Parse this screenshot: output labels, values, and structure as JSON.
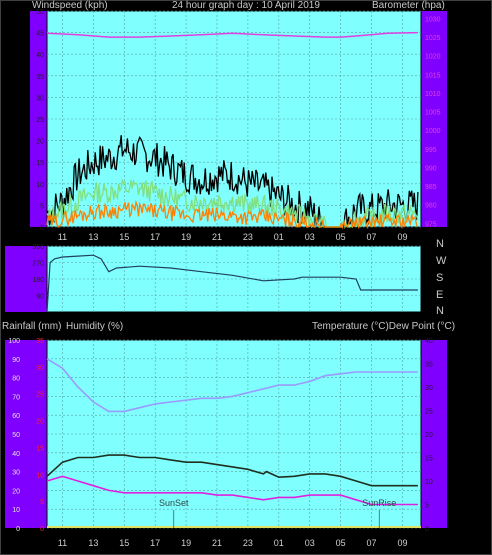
{
  "header": {
    "left": "Windspeed (kph)",
    "center": "24 hour graph day : 10 April 2019",
    "right": "Barometer (hpa)"
  },
  "direction_labels": [
    "N",
    "W",
    "S",
    "E",
    "N"
  ],
  "bottom_header": {
    "left1": "Rainfall (mm)",
    "left2": "Humidity (%)",
    "right": "Temperature (°C)Dew Point (°C)"
  },
  "colors": {
    "background": "#000000",
    "plot_area": "#80ffff",
    "side_panel": "#8000ff",
    "wind_gust": "#000000",
    "wind_avg": "#80e080",
    "wind_low": "#ff8000",
    "barometer": "#e040e0",
    "direction": "#204060",
    "humidity": "#9a9aff",
    "temperature": "#203020",
    "dew_point": "#e020e0",
    "rain_axis": "#ff2020"
  },
  "x_ticks": [
    "11",
    "13",
    "15",
    "17",
    "19",
    "21",
    "23",
    "01",
    "03",
    "05",
    "07",
    "09"
  ],
  "chart_data": [
    {
      "type": "line",
      "name": "wind-barometer",
      "series": [
        {
          "name": "Windspeed gust",
          "x": [
            10,
            11,
            12,
            13,
            14,
            15,
            16,
            17,
            18,
            19,
            20,
            21,
            22,
            23,
            24,
            25,
            26,
            27,
            28,
            29,
            30,
            31,
            32,
            33,
            34
          ],
          "values": [
            3,
            6,
            12,
            15,
            16,
            18,
            17,
            16,
            14,
            12,
            11,
            12,
            12,
            10,
            9,
            7,
            5,
            4,
            0,
            0,
            4,
            4,
            5,
            5,
            5
          ]
        },
        {
          "name": "Windspeed average",
          "x": [
            10,
            11,
            12,
            13,
            14,
            15,
            16,
            17,
            18,
            19,
            20,
            21,
            22,
            23,
            24,
            25,
            26,
            27,
            28,
            29,
            30,
            31,
            32,
            33,
            34
          ],
          "values": [
            2,
            4,
            6,
            8,
            8,
            9,
            9,
            8,
            7,
            6,
            6,
            6,
            6,
            5,
            5,
            4,
            3,
            2,
            0,
            0,
            2,
            2,
            3,
            3,
            3
          ]
        },
        {
          "name": "Barometer",
          "x": [
            10,
            12,
            14,
            16,
            18,
            20,
            22,
            24,
            26,
            28,
            29,
            30,
            32,
            34
          ],
          "values": [
            1026,
            1025.6,
            1025,
            1025,
            1025.3,
            1025.6,
            1026,
            1025.6,
            1025.3,
            1025,
            1025,
            1025.3,
            1026,
            1026.2
          ]
        }
      ],
      "left_axis": {
        "ticks": [
          "0",
          "5",
          "10",
          "15",
          "20",
          "25",
          "30",
          "35",
          "40",
          "45",
          "50"
        ],
        "ylim": [
          0,
          50
        ]
      },
      "right_axis": {
        "ticks": [
          "975",
          "980",
          "985",
          "990",
          "995",
          "1000",
          "1005",
          "1010",
          "1015",
          "1020",
          "1025",
          "1030"
        ],
        "ylim": [
          974,
          1032
        ]
      }
    },
    {
      "type": "line",
      "name": "wind-direction",
      "series": [
        {
          "name": "Wind direction",
          "x": [
            10,
            10.2,
            10.5,
            11,
            12,
            13,
            13.5,
            14,
            14.5,
            16,
            18,
            20,
            22,
            24,
            26,
            26.5,
            28,
            29,
            30,
            30.3,
            31,
            32,
            34
          ],
          "values": [
            0,
            270,
            290,
            300,
            305,
            310,
            290,
            220,
            240,
            250,
            240,
            220,
            200,
            170,
            180,
            190,
            190,
            190,
            180,
            120,
            120,
            120,
            120
          ]
        }
      ],
      "left_axis": {
        "ticks": [
          "90",
          "180",
          "270",
          "360"
        ],
        "ylim": [
          0,
          360
        ]
      }
    },
    {
      "type": "line",
      "name": "temperature-humidity",
      "series": [
        {
          "name": "Humidity",
          "x": [
            10,
            11,
            12,
            13,
            14,
            15,
            16,
            17,
            18,
            19,
            20,
            21,
            22,
            23,
            24,
            25,
            26,
            27,
            28,
            29,
            30,
            31,
            32,
            33,
            34
          ],
          "values": [
            90,
            85,
            75,
            67,
            62,
            62,
            64,
            66,
            67,
            68,
            69,
            69,
            70,
            72,
            74,
            76,
            76,
            78,
            81,
            82,
            83,
            83,
            83,
            83,
            83
          ]
        },
        {
          "name": "Temperature",
          "x": [
            10,
            11,
            12,
            13,
            14,
            15,
            16,
            17,
            18,
            19,
            20,
            21,
            22,
            23,
            24,
            24.2,
            25,
            26,
            27,
            28,
            29,
            30,
            31,
            32,
            33,
            34
          ],
          "values": [
            11,
            14,
            15,
            15,
            15.5,
            15.5,
            15,
            15,
            14.5,
            14,
            14,
            13.5,
            13,
            12.5,
            11.5,
            12,
            10.8,
            11,
            11.5,
            11.5,
            11,
            10,
            9,
            9,
            9,
            9
          ]
        },
        {
          "name": "Dew Point",
          "x": [
            10,
            11,
            12,
            13,
            14,
            15,
            16,
            17,
            18,
            19,
            20,
            21,
            22,
            23,
            24,
            25,
            26,
            27,
            28,
            29,
            30,
            31,
            32,
            33,
            34
          ],
          "values": [
            10,
            11,
            10,
            9,
            8,
            7.5,
            7.5,
            7.5,
            7.5,
            7.5,
            7.5,
            7,
            7,
            6.5,
            6,
            6.5,
            6.5,
            7,
            7,
            7,
            6,
            5,
            5,
            5,
            5
          ]
        }
      ],
      "left_axis": {
        "ticks": [
          "0",
          "10",
          "20",
          "30",
          "40",
          "50",
          "60",
          "70",
          "80",
          "90",
          "100"
        ],
        "ylim": [
          0,
          100
        ]
      },
      "rain_axis": {
        "ticks": [
          "0",
          "5",
          "10",
          "15",
          "20",
          "25",
          "30",
          "35"
        ],
        "ylim": [
          0,
          35
        ]
      },
      "right_axis": {
        "ticks": [
          "0",
          "5",
          "10",
          "15",
          "20",
          "25",
          "30",
          "35",
          "40"
        ],
        "ylim": [
          0,
          40
        ]
      },
      "annotations": [
        {
          "text": "SunSet",
          "x": 18.2
        },
        {
          "text": "SunRise",
          "x": 31.5
        }
      ]
    }
  ]
}
